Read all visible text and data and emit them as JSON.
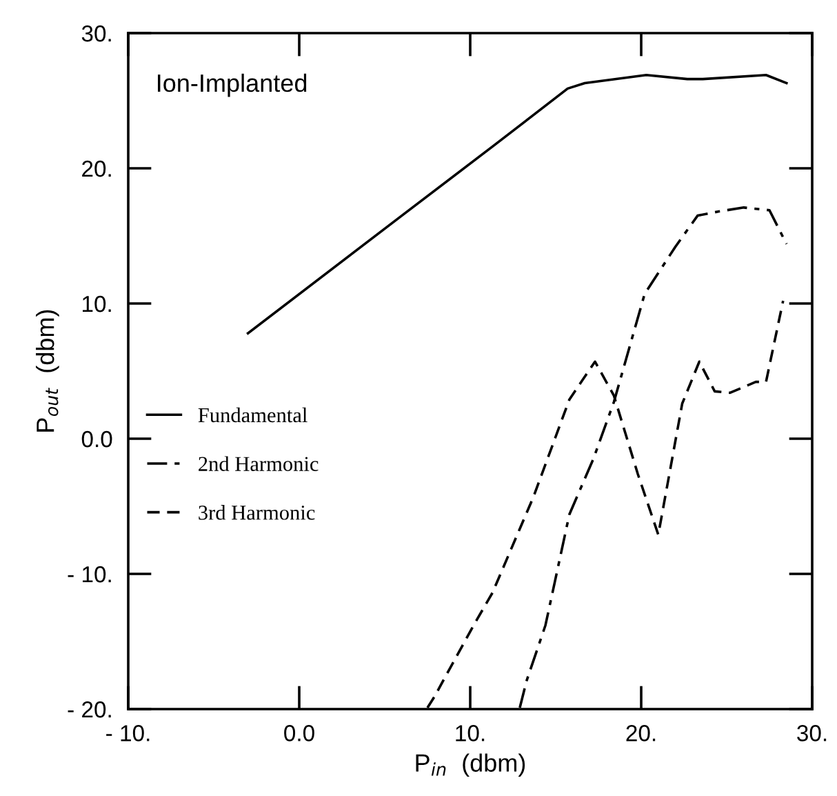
{
  "chart_data": {
    "type": "line",
    "xlabel": "P$_{in}$  (dbm)",
    "ylabel": "P$_{out}$  (dbm)",
    "annotations": [
      "Ion-Implanted"
    ],
    "xlim": [
      -10,
      30
    ],
    "ylim": [
      -20,
      30
    ],
    "xticks": [
      {
        "value": -10,
        "label": "- 10."
      },
      {
        "value": 0,
        "label": "0.0"
      },
      {
        "value": 10,
        "label": "10."
      },
      {
        "value": 20,
        "label": "20."
      },
      {
        "value": 30,
        "label": "30."
      }
    ],
    "yticks": [
      {
        "value": -20,
        "label": "- 20."
      },
      {
        "value": -10,
        "label": "- 10."
      },
      {
        "value": 0,
        "label": "0.0"
      },
      {
        "value": 10,
        "label": "10."
      },
      {
        "value": 20,
        "label": "20."
      },
      {
        "value": 30,
        "label": "30."
      }
    ],
    "grid": false,
    "legend": "center left",
    "marker": "none",
    "series": [
      {
        "name": "Fundamental",
        "color": "#000000",
        "line_style": "solid",
        "x": [
          -3.0,
          6.0,
          11.4,
          15.7,
          16.7,
          20.3,
          22.7,
          23.6,
          27.3,
          28.5
        ],
        "values": [
          7.8,
          16.5,
          21.7,
          25.9,
          26.3,
          26.9,
          26.6,
          26.6,
          26.9,
          26.3
        ]
      },
      {
        "name": "2nd Harmonic",
        "color": "#000000",
        "line_style": "dashdot",
        "x": [
          12.9,
          13.3,
          14.4,
          15.8,
          17.2,
          18.4,
          20.2,
          22.0,
          23.3,
          24.5,
          26.0,
          27.5,
          28.5
        ],
        "values": [
          -19.9,
          -17.9,
          -13.8,
          -5.6,
          -1.5,
          2.7,
          10.7,
          14.2,
          16.5,
          16.8,
          17.1,
          16.9,
          14.4
        ]
      },
      {
        "name": "3rd Harmonic",
        "color": "#000000",
        "line_style": "dashed",
        "x": [
          7.5,
          7.9,
          10.2,
          11.3,
          13.7,
          15.8,
          16.6,
          17.3,
          18.4,
          19.8,
          21.0,
          22.4,
          23.4,
          24.3,
          25.2,
          26.7,
          27.3,
          28.3
        ],
        "values": [
          -19.9,
          -19.1,
          -13.8,
          -11.4,
          -4.3,
          2.9,
          4.4,
          5.7,
          3.2,
          -2.6,
          -7.1,
          2.6,
          5.7,
          3.5,
          3.4,
          4.2,
          4.2,
          10.2
        ]
      }
    ]
  }
}
